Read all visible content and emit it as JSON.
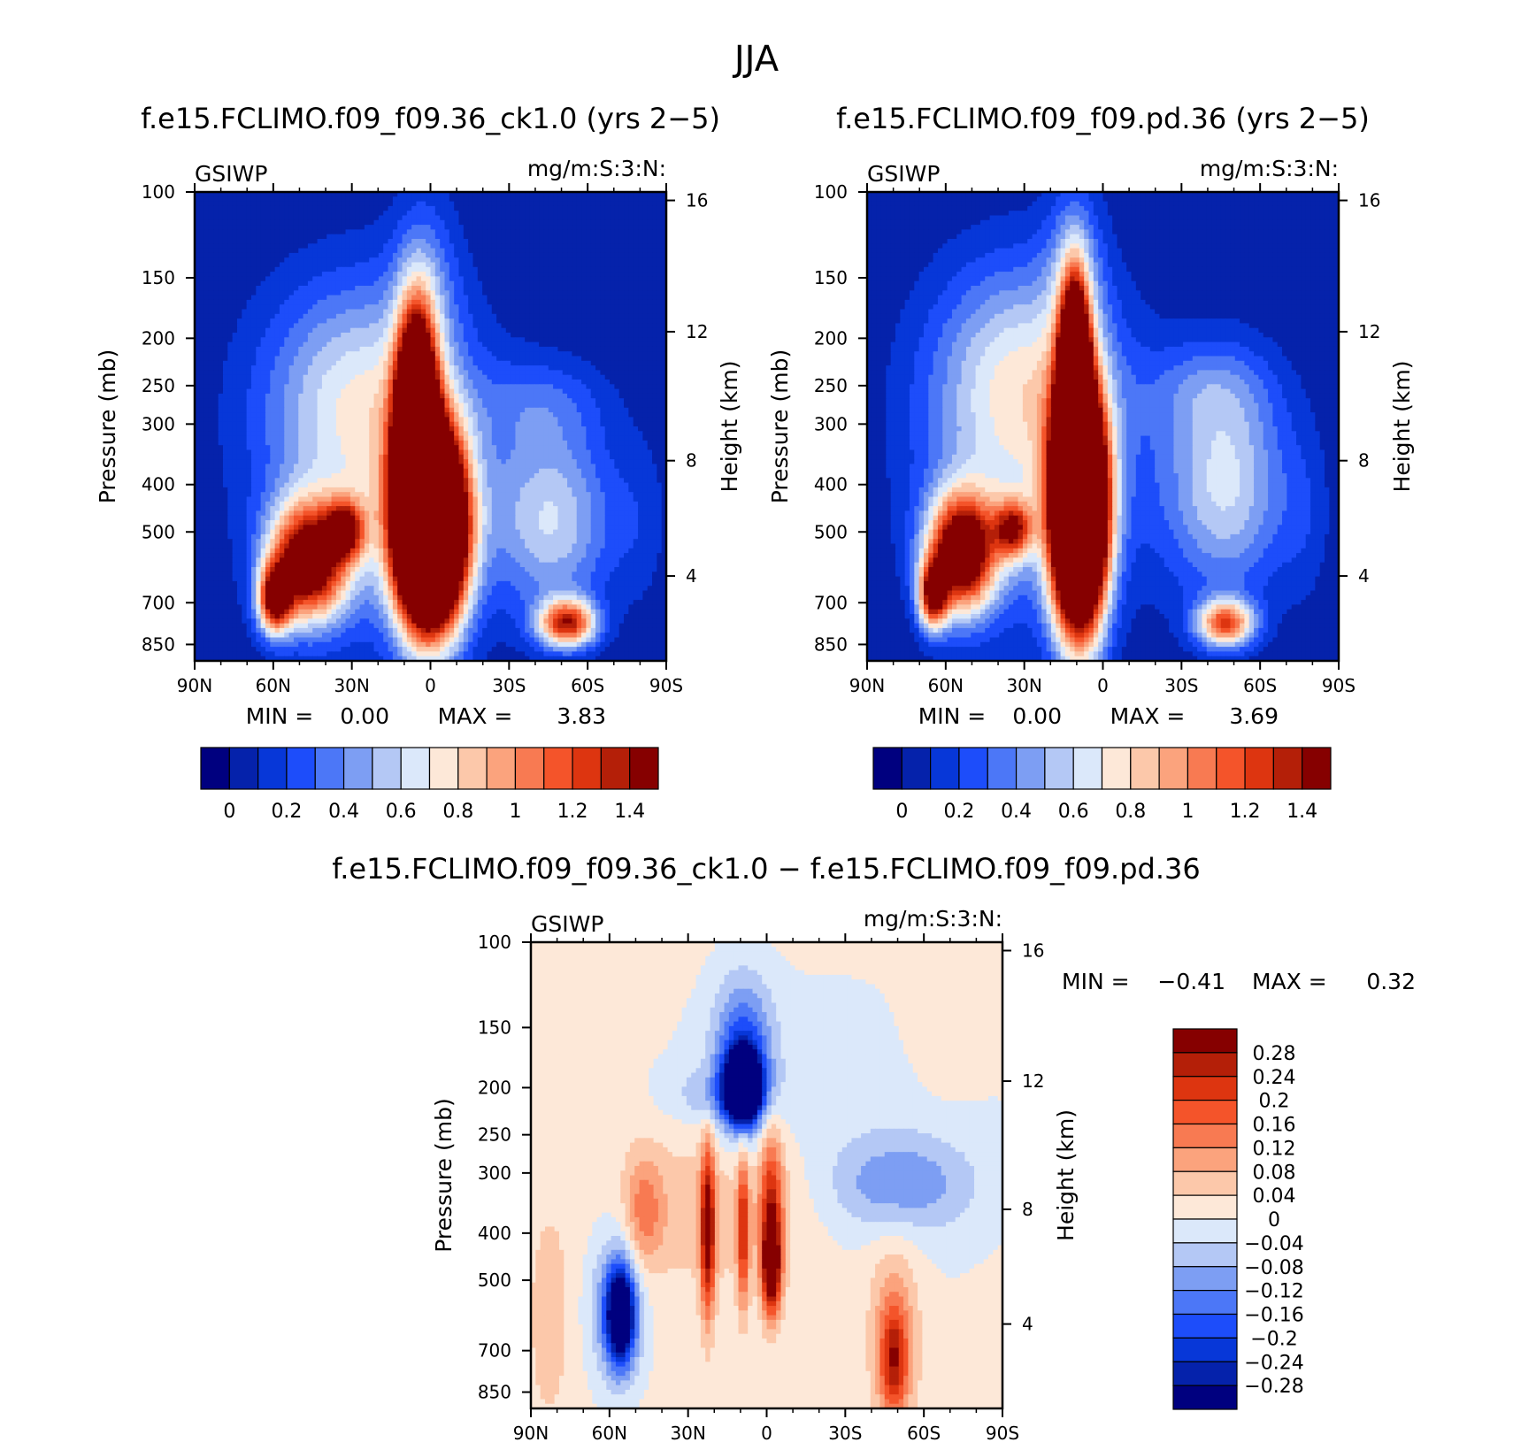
{
  "figure": {
    "title": "JJA"
  },
  "chart_data": [
    {
      "type": "heatmap",
      "title": "f.e15.FCLIMO.f09_f09.36_ck1.0 (yrs 2−5)",
      "left_string": "GSIWP",
      "right_string": "mg/m:S:3:N:",
      "xlabel": "",
      "ylabel": "Pressure (mb)",
      "ylabel_right": "Height (km)",
      "x_ticks": [
        "90N",
        "60N",
        "30N",
        "0",
        "30S",
        "60S",
        "90S"
      ],
      "y_ticks": [
        "100",
        "150",
        "200",
        "250",
        "300",
        "400",
        "500",
        "700",
        "850"
      ],
      "y_right_ticks": [
        "16",
        "12",
        "8",
        "4"
      ],
      "ylim": [
        100,
        925
      ],
      "y_scale": "log",
      "min_label": "MIN =",
      "min_value": "0.00",
      "max_label": "MAX =",
      "max_value": "3.83",
      "colorbar": {
        "orientation": "horizontal",
        "labels": [
          "0",
          "0.2",
          "0.4",
          "0.6",
          "0.8",
          "1",
          "1.2",
          "1.4"
        ]
      },
      "features": [
        {
          "lat": -20,
          "p": 500,
          "value": 3.8
        },
        {
          "lat": 52,
          "p": 560,
          "value": 1.5
        },
        {
          "lat": -53,
          "p": 780,
          "value": 1.2
        }
      ]
    },
    {
      "type": "heatmap",
      "title": "f.e15.FCLIMO.f09_f09.pd.36 (yrs 2−5)",
      "left_string": "GSIWP",
      "right_string": "mg/m:S:3:N:",
      "xlabel": "",
      "ylabel": "Pressure (mb)",
      "ylabel_right": "Height (km)",
      "x_ticks": [
        "90N",
        "60N",
        "30N",
        "0",
        "30S",
        "60S",
        "90S"
      ],
      "y_ticks": [
        "100",
        "150",
        "200",
        "250",
        "300",
        "400",
        "500",
        "700",
        "850"
      ],
      "y_right_ticks": [
        "16",
        "12",
        "8",
        "4"
      ],
      "ylim": [
        100,
        925
      ],
      "y_scale": "log",
      "min_label": "MIN =",
      "min_value": "0.00",
      "max_label": "MAX =",
      "max_value": "3.69",
      "colorbar": {
        "orientation": "horizontal",
        "labels": [
          "0",
          "0.2",
          "0.4",
          "0.6",
          "0.8",
          "1",
          "1.2",
          "1.4"
        ]
      },
      "features": [
        {
          "lat": -20,
          "p": 500,
          "value": 3.7
        },
        {
          "lat": 55,
          "p": 560,
          "value": 1.6
        },
        {
          "lat": -50,
          "p": 790,
          "value": 1.1
        }
      ]
    },
    {
      "type": "heatmap",
      "title": "f.e15.FCLIMO.f09_f09.36_ck1.0 − f.e15.FCLIMO.f09_f09.pd.36",
      "left_string": "GSIWP",
      "right_string": "mg/m:S:3:N:",
      "xlabel": "",
      "ylabel": "Pressure (mb)",
      "ylabel_right": "Height (km)",
      "x_ticks": [
        "90N",
        "60N",
        "30N",
        "0",
        "30S",
        "60S",
        "90S"
      ],
      "y_ticks": [
        "100",
        "150",
        "200",
        "250",
        "300",
        "400",
        "500",
        "700",
        "850"
      ],
      "y_right_ticks": [
        "16",
        "12",
        "8",
        "4"
      ],
      "ylim": [
        100,
        925
      ],
      "y_scale": "log",
      "min_label": "MIN =",
      "min_value": "−0.41",
      "max_label": "MAX =",
      "max_value": "0.32",
      "colorbar": {
        "orientation": "vertical",
        "labels": [
          "0.28",
          "0.24",
          "0.2",
          "0.16",
          "0.12",
          "0.08",
          "0.04",
          "0",
          "−0.04",
          "−0.08",
          "−0.12",
          "−0.16",
          "−0.2",
          "−0.24",
          "−0.28"
        ]
      },
      "features": [
        {
          "lat": 10,
          "p": 200,
          "value": -0.41
        },
        {
          "lat": 55,
          "p": 590,
          "value": -0.3
        },
        {
          "lat": 20,
          "p": 450,
          "value": 0.28
        },
        {
          "lat": 0,
          "p": 500,
          "value": 0.32
        },
        {
          "lat": -50,
          "p": 800,
          "value": 0.2
        }
      ]
    }
  ],
  "palettes": {
    "seq": [
      "#00007f",
      "#0522ab",
      "#0737d8",
      "#1d4dfa",
      "#4c77f7",
      "#7d9ef3",
      "#b4c8f5",
      "#dbe8fa",
      "#fde8d8",
      "#fcc8aa",
      "#fba37d",
      "#f87a52",
      "#f4542a",
      "#dd3510",
      "#b41f08",
      "#860000"
    ],
    "diff": [
      "#00007f",
      "#0522ab",
      "#0737d8",
      "#1d4dfa",
      "#4c77f7",
      "#7d9ef3",
      "#b4c8f5",
      "#dbe8fa",
      "#fde8d8",
      "#fcc8aa",
      "#fba37d",
      "#f87a52",
      "#f4542a",
      "#dd3510",
      "#b41f08",
      "#860000"
    ]
  }
}
